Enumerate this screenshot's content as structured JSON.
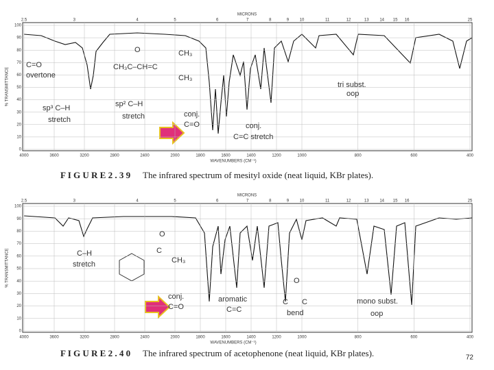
{
  "figures": [
    {
      "microns_label": "MICRONS",
      "microns_ticks": [
        "2.5",
        "3",
        "4",
        "5",
        "6",
        "7",
        "8",
        "9",
        "10",
        "11",
        "12",
        "13",
        "14",
        "15",
        "16",
        "25"
      ],
      "y_label": "% TRANSMITTANCE",
      "y_ticks": [
        "100",
        "90",
        "80",
        "70",
        "60",
        "50",
        "40",
        "30",
        "20",
        "10",
        "0"
      ],
      "x_label": "WAVENUMBERS (CM⁻¹)",
      "x_ticks": [
        "4000",
        "3600",
        "3200",
        "2800",
        "2400",
        "2000",
        "1800",
        "1600",
        "1400",
        "1200",
        "1000",
        "800",
        "600",
        "400"
      ],
      "caption_label": "F I G U R E  2 . 3 9",
      "caption": "The infrared spectrum of mesityl oxide (neat liquid, KBr plates).",
      "annotations": [
        "C=O",
        "overtone",
        "sp³ C–H",
        "stretch",
        "sp² C–H",
        "stretch",
        "conj.",
        "C=O",
        "conj.",
        "C=C stretch",
        "tri subst.",
        "oop",
        "O",
        "CH₃",
        "CH₃C–CH=C",
        "CH₃"
      ]
    },
    {
      "microns_label": "MICRONS",
      "microns_ticks": [
        "2.5",
        "3",
        "4",
        "5",
        "6",
        "7",
        "8",
        "9",
        "10",
        "11",
        "12",
        "13",
        "14",
        "15",
        "16",
        "25"
      ],
      "y_label": "% TRANSMITTANCE",
      "y_ticks": [
        "100",
        "90",
        "80",
        "70",
        "60",
        "50",
        "40",
        "30",
        "20",
        "10",
        "0"
      ],
      "x_label": "WAVENUMBERS (CM⁻¹)",
      "x_ticks": [
        "4000",
        "3600",
        "3200",
        "2800",
        "2400",
        "2000",
        "1800",
        "1600",
        "1400",
        "1200",
        "1000",
        "800",
        "600",
        "400"
      ],
      "caption_label": "F I G U R E  2 . 4 0",
      "caption": "The infrared spectrum of acetophenone (neat liquid, KBr plates).",
      "annotations": [
        "C–H",
        "stretch",
        "O",
        "C",
        "CH₃",
        "conj.",
        "C=O",
        "aromatic",
        "C=C",
        "O",
        "C",
        "C",
        "bend",
        "mono subst.",
        "oop"
      ]
    }
  ],
  "page_number": "72"
}
